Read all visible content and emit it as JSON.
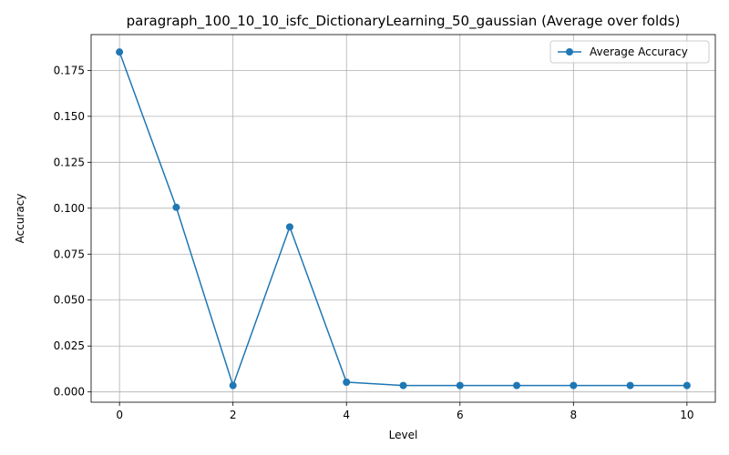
{
  "chart_data": {
    "type": "line",
    "title": "paragraph_100_10_10_isfc_DictionaryLearning_50_gaussian (Average over folds)",
    "xlabel": "Level",
    "ylabel": "Accuracy",
    "xlim": [
      -0.5,
      10.5
    ],
    "ylim": [
      -0.0056,
      0.1945
    ],
    "xticks": [
      0,
      2,
      4,
      6,
      8,
      10
    ],
    "xtick_labels": [
      "0",
      "2",
      "4",
      "6",
      "8",
      "10"
    ],
    "yticks": [
      0.0,
      0.025,
      0.05,
      0.075,
      0.1,
      0.125,
      0.15,
      0.175
    ],
    "ytick_labels": [
      "0.000",
      "0.025",
      "0.050",
      "0.075",
      "0.100",
      "0.125",
      "0.150",
      "0.175"
    ],
    "grid": true,
    "legend_position": "top-right",
    "series": [
      {
        "name": "Average Accuracy",
        "color": "#1f77b4",
        "marker": "circle",
        "x": [
          0,
          1,
          2,
          3,
          4,
          5,
          6,
          7,
          8,
          9,
          10
        ],
        "values": [
          0.185,
          0.1005,
          0.0035,
          0.0898,
          0.0053,
          0.0035,
          0.0035,
          0.0035,
          0.0035,
          0.0035,
          0.0035
        ]
      }
    ]
  }
}
